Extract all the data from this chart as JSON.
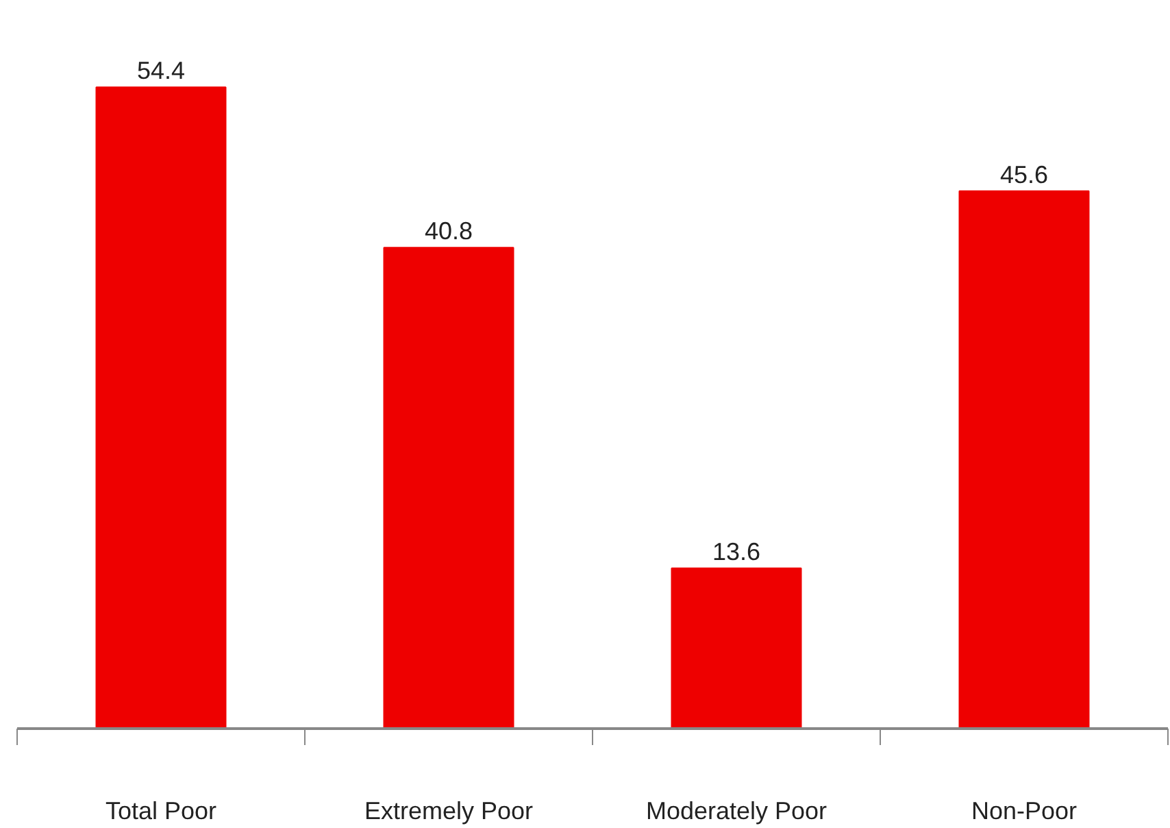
{
  "chart_data": {
    "type": "bar",
    "categories": [
      "Total Poor",
      "Extremely Poor",
      "Moderately Poor",
      "Non-Poor"
    ],
    "values": [
      54.4,
      40.8,
      13.6,
      45.6
    ],
    "color": "#ee0000",
    "data_labels": true
  }
}
